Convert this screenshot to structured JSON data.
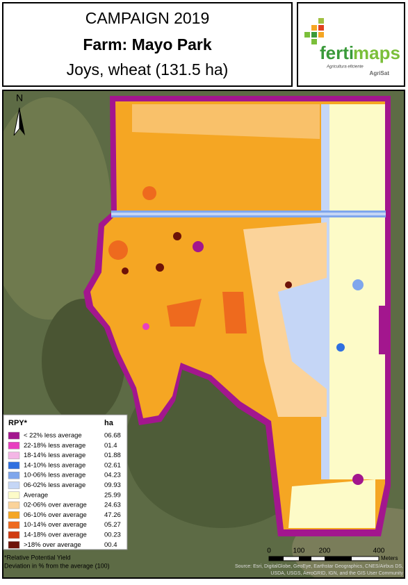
{
  "header": {
    "title": "CAMPAIGN 2019",
    "farm": "Farm: Mayo Park",
    "crop": "Joys, wheat (131.5 ha)"
  },
  "logo": {
    "name_part1": "ferti",
    "name_part2": "maps",
    "tagline": "Agricultura eficiente",
    "brand": "AgriSat"
  },
  "map": {
    "north": "N",
    "legend": {
      "title": "RPY*",
      "unit": "ha",
      "items": [
        {
          "label": "< 22% less average",
          "ha": "06.68",
          "color": "#a3168e"
        },
        {
          "label": "22-18% less average",
          "ha": "01.4",
          "color": "#e83fc0"
        },
        {
          "label": "18-14% less average",
          "ha": "01.88",
          "color": "#f4b6e6"
        },
        {
          "label": "14-10% less average",
          "ha": "02.61",
          "color": "#2f6fe0"
        },
        {
          "label": "10-06% less average",
          "ha": "04.23",
          "color": "#7fa6ec"
        },
        {
          "label": "06-02% less average",
          "ha": "09.93",
          "color": "#c5d6f6"
        },
        {
          "label": "Average",
          "ha": "25.99",
          "color": "#fdfbc8"
        },
        {
          "label": "02-06% over average",
          "ha": "24.63",
          "color": "#fbd39a"
        },
        {
          "label": "06-10% over average",
          "ha": "47.26",
          "color": "#f5a623"
        },
        {
          "label": "10-14% over average",
          "ha": "05.27",
          "color": "#ee6a1e"
        },
        {
          "label": "14-18% over average",
          "ha": "00.23",
          "color": "#d13b10"
        },
        {
          "label": ">18% over average",
          "ha": "00.4",
          "color": "#6e1208"
        }
      ]
    },
    "footnote": [
      "*Relative Potential Yield",
      "Deviation in %  from the average (100)"
    ],
    "scale": {
      "ticks": [
        "0",
        "100",
        "200",
        "400"
      ],
      "unit": "Meters"
    },
    "attribution": [
      "Source: Esri, DigitalGlobe, GeoEye, Earthstar Geographics, CNES/Airbus DS,",
      "USDA, USGS, AeroGRID, IGN, and the GIS User Community"
    ]
  }
}
